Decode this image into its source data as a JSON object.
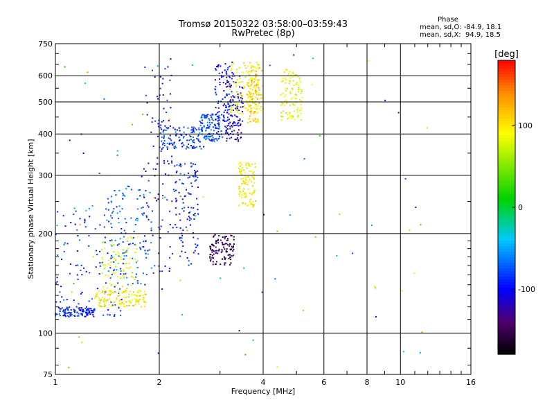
{
  "chart_data": {
    "type": "scatter",
    "title": "Tromsø 20150322 03:58:00–03:59:43",
    "subtitle": "RwPretec (8p)",
    "xlabel": "Frequency [MHz]",
    "ylabel": "Stationary phase Virtual Height [km]",
    "x_scale": "log",
    "y_scale": "log",
    "xlim": [
      1,
      16
    ],
    "ylim": [
      75,
      750
    ],
    "x_ticks": [
      1,
      2,
      4,
      6,
      8,
      10,
      16
    ],
    "y_ticks": [
      75,
      100,
      200,
      300,
      400,
      500,
      600,
      750
    ],
    "grid": true,
    "colorbar": {
      "label": "[deg]",
      "ticks": [
        100,
        0,
        -100
      ],
      "range": [
        -180,
        180
      ],
      "colormap": "rainbow"
    },
    "annotation": {
      "heading": "Phase",
      "line_o": "mean, sd,O: -84.9, 18.1",
      "line_x": "mean, sd,X:  94.9, 18.5"
    },
    "clusters": [
      {
        "trace": "low",
        "f": [
          1.0,
          1.3
        ],
        "h": [
          112,
          120
        ],
        "phase": -95
      },
      {
        "trace": "low",
        "f": [
          1.0,
          1.6
        ],
        "h": [
          112,
          240
        ],
        "phase": -90
      },
      {
        "trace": "mid",
        "f": [
          1.35,
          1.75
        ],
        "h": [
          120,
          200
        ],
        "phase": 80
      },
      {
        "trace": "mid",
        "f": [
          1.3,
          1.85
        ],
        "h": [
          120,
          135
        ],
        "phase": 100
      },
      {
        "trace": "mid",
        "f": [
          1.4,
          1.9
        ],
        "h": [
          140,
          280
        ],
        "phase": -70
      },
      {
        "trace": "F",
        "f": [
          1.8,
          2.2
        ],
        "h": [
          150,
          650
        ],
        "phase": -100
      },
      {
        "trace": "F",
        "f": [
          2.0,
          2.7
        ],
        "h": [
          360,
          420
        ],
        "phase": -85
      },
      {
        "trace": "F",
        "f": [
          2.2,
          2.6
        ],
        "h": [
          160,
          330
        ],
        "phase": -95
      },
      {
        "trace": "F",
        "f": [
          2.6,
          3.0
        ],
        "h": [
          380,
          460
        ],
        "phase": -75
      },
      {
        "trace": "F",
        "f": [
          2.9,
          3.3
        ],
        "h": [
          380,
          660
        ],
        "phase": -105
      },
      {
        "trace": "F",
        "f": [
          3.1,
          3.5
        ],
        "h": [
          380,
          600
        ],
        "phase": -110
      },
      {
        "trace": "X",
        "f": [
          3.2,
          4.0
        ],
        "h": [
          460,
          660
        ],
        "phase": 90
      },
      {
        "trace": "X",
        "f": [
          3.6,
          3.9
        ],
        "h": [
          430,
          650
        ],
        "phase": 110
      },
      {
        "trace": "X",
        "f": [
          4.5,
          5.2
        ],
        "h": [
          440,
          630
        ],
        "phase": 85
      },
      {
        "trace": "X",
        "f": [
          3.4,
          3.8
        ],
        "h": [
          240,
          330
        ],
        "phase": 90
      },
      {
        "trace": "E",
        "f": [
          2.8,
          3.3
        ],
        "h": [
          160,
          200
        ],
        "phase": -150
      },
      {
        "trace": "noise",
        "f": [
          1.0,
          12.0
        ],
        "h": [
          78,
          700
        ],
        "phase": 0
      }
    ]
  }
}
